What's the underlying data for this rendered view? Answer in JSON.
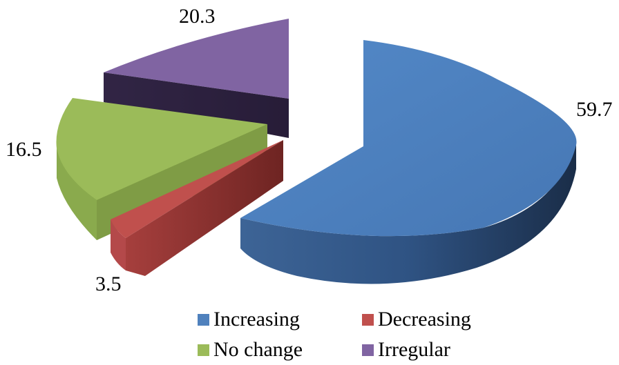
{
  "chart_data": {
    "type": "pie",
    "categories": [
      "Increasing",
      "Decreasing",
      "No change",
      "Irregular"
    ],
    "values": [
      59.7,
      3.5,
      16.5,
      20.3
    ],
    "data_labels": [
      "59.7",
      "3.5",
      "16.5",
      "20.3"
    ],
    "title": "",
    "legend": "bottom",
    "exploded": true,
    "three_d": true,
    "colors": [
      "#4F81BD",
      "#C0504D",
      "#9BBB59",
      "#8064A2"
    ]
  }
}
